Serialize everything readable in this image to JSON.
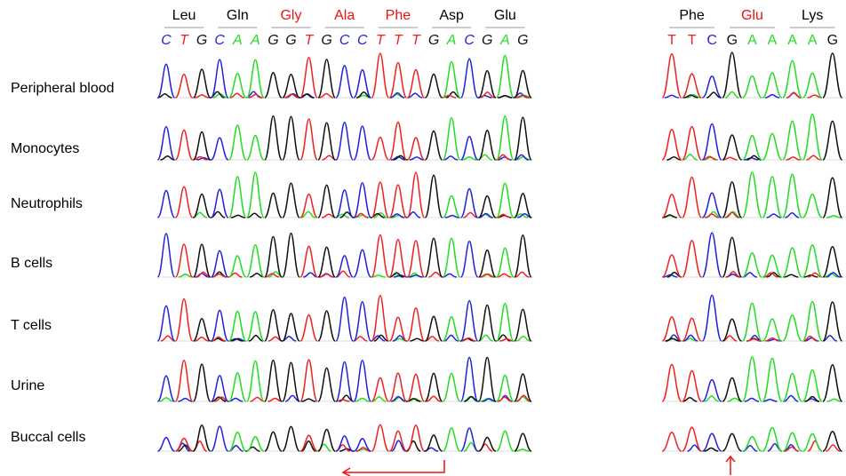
{
  "panels": [
    {
      "codons": [
        {
          "label": "Leu",
          "label_color": "#000000",
          "bases": [
            "C",
            "T",
            "G"
          ]
        },
        {
          "label": "Gln",
          "label_color": "#000000",
          "bases": [
            "C",
            "A",
            "A"
          ]
        },
        {
          "label": "Gly",
          "label_color": "#ee1111",
          "bases": [
            "G",
            "G",
            "T"
          ]
        },
        {
          "label": "Ala",
          "label_color": "#ee1111",
          "bases": [
            "G",
            "C",
            "C"
          ]
        },
        {
          "label": "Phe",
          "label_color": "#ee1111",
          "bases": [
            "T",
            "T",
            "T"
          ]
        },
        {
          "label": "Asp",
          "label_color": "#000000",
          "bases": [
            "G",
            "A",
            "C"
          ]
        },
        {
          "label": "Glu",
          "label_color": "#000000",
          "bases": [
            "G",
            "A",
            "G"
          ]
        }
      ]
    },
    {
      "codons": [
        {
          "label": "Phe",
          "label_color": "#000000",
          "bases": [
            "T",
            "T",
            "C"
          ]
        },
        {
          "label": "Glu",
          "label_color": "#ee1111",
          "bases": [
            "G",
            "A",
            "A"
          ]
        },
        {
          "label": "Lys",
          "label_color": "#000000",
          "bases": [
            "A",
            "A",
            "G"
          ]
        }
      ]
    }
  ],
  "samples": [
    "Peripheral blood",
    "Monocytes",
    "Neutrophils",
    "B cells",
    "T cells",
    "Urine",
    "Buccal cells"
  ],
  "base_colors": {
    "A": "#22dd22",
    "C": "#2222dd",
    "G": "#111111",
    "T": "#ee2222"
  },
  "arrow_color": "#ee1111"
}
